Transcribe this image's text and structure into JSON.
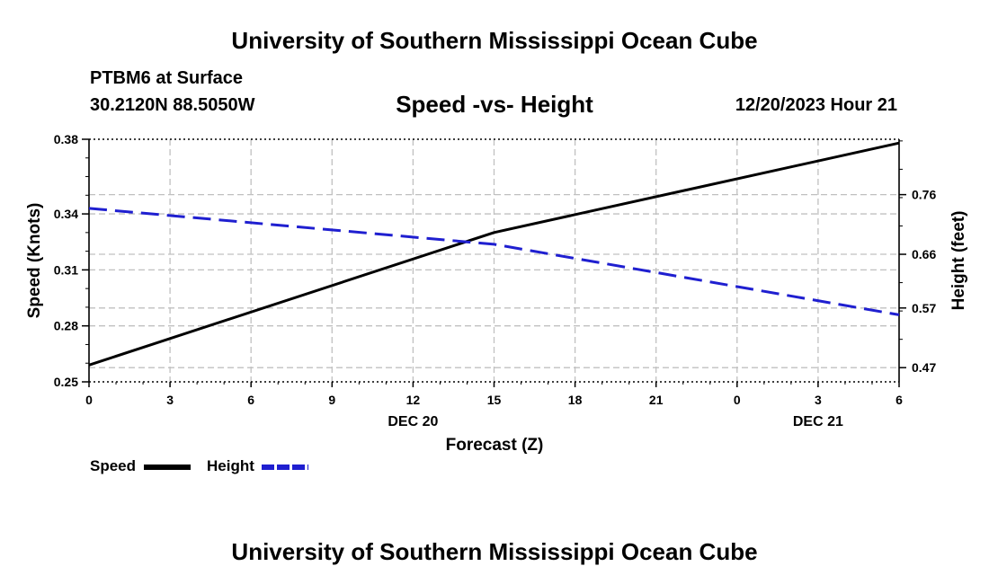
{
  "header": {
    "title": "University of Southern Mississippi Ocean Cube",
    "station": "PTBM6 at Surface",
    "coords": "30.2120N  88.5050W",
    "date": "12/20/2023 Hour 21"
  },
  "footer": {
    "title": "University of Southern Mississippi Ocean Cube"
  },
  "chart_data": {
    "type": "line",
    "title": "Speed -vs- Height",
    "xlabel": "Forecast (Z)",
    "x_ticks": [
      "0",
      "3",
      "6",
      "9",
      "12",
      "15",
      "18",
      "21",
      "0",
      "3",
      "6"
    ],
    "x_hours": [
      0,
      3,
      6,
      9,
      12,
      15,
      18,
      21,
      24,
      27,
      30
    ],
    "xlim": [
      0,
      30
    ],
    "date_labels": [
      {
        "label": "DEC 20",
        "at_hour": 12
      },
      {
        "label": "DEC 21",
        "at_hour": 27
      }
    ],
    "left_axis": {
      "label": "Speed (Knots)",
      "range": [
        0.25,
        0.38
      ],
      "ticks": [
        0.25,
        0.28,
        0.31,
        0.34,
        0.38
      ],
      "tick_labels": [
        "0.25",
        "0.28",
        "0.31",
        "0.34",
        "0.38"
      ]
    },
    "right_axis": {
      "label": "Height (feet)",
      "range": [
        0.4462,
        0.8528
      ],
      "ticks": [
        0.47,
        0.57,
        0.66,
        0.76
      ],
      "tick_labels": [
        "0.47",
        "0.57",
        "0.66",
        "0.76"
      ]
    },
    "grid": true,
    "series": [
      {
        "name": "Speed",
        "axis": "left",
        "color": "#000000",
        "dash": false,
        "x": [
          0,
          15,
          30
        ],
        "values": [
          0.259,
          0.33,
          0.378
        ]
      },
      {
        "name": "Height",
        "axis": "right",
        "color": "#1f1fd0",
        "dash": true,
        "x": [
          0,
          15,
          30
        ],
        "values": [
          0.737,
          0.6768,
          0.5586
        ]
      }
    ],
    "legend": [
      {
        "label": "Speed",
        "color": "#000000",
        "dash": false
      },
      {
        "label": "Height",
        "color": "#1f1fd0",
        "dash": true
      }
    ]
  }
}
